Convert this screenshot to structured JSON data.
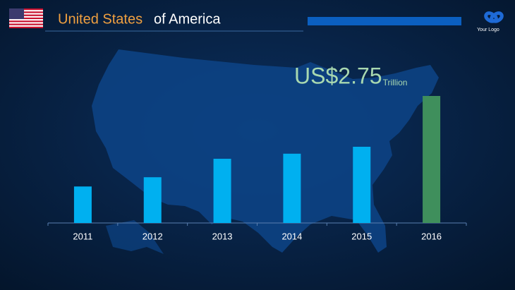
{
  "header": {
    "title_highlight": "United States",
    "title_rest": "of America",
    "logo_text": "Your Logo"
  },
  "chart_data": {
    "type": "bar",
    "categories": [
      "2011",
      "2012",
      "2013",
      "2014",
      "2015",
      "2016"
    ],
    "values": [
      0.79,
      0.99,
      1.39,
      1.5,
      1.65,
      2.75
    ],
    "value_labels": [
      null,
      null,
      null,
      null,
      null,
      "US$2.75"
    ],
    "value_unit": "Trillion",
    "colors": [
      "#00b0f0",
      "#00b0f0",
      "#00b0f0",
      "#00b0f0",
      "#00b0f0",
      "#3f8f5c"
    ]
  }
}
